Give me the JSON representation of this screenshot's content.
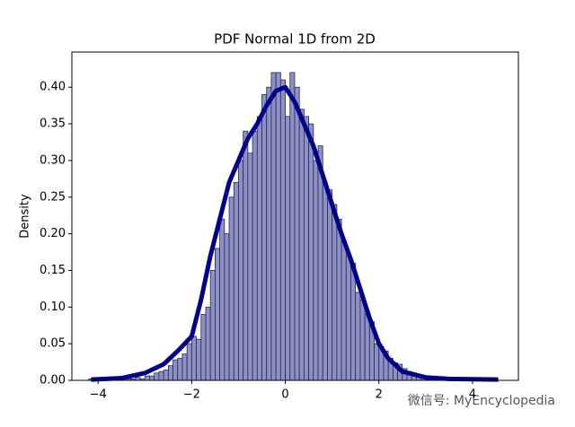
{
  "chart_data": {
    "type": "histogram",
    "title": "PDF Normal 1D from 2D",
    "ylabel": "Density",
    "bins": [
      -4.2,
      -4.1,
      -4.0,
      -3.9,
      -3.8,
      -3.7,
      -3.6,
      -3.5,
      -3.4,
      -3.3,
      -3.2,
      -3.1,
      -3.0,
      -2.9,
      -2.8,
      -2.7,
      -2.6,
      -2.5,
      -2.4,
      -2.3,
      -2.2,
      -2.1,
      -2.0,
      -1.9,
      -1.8,
      -1.7,
      -1.6,
      -1.5,
      -1.4,
      -1.3,
      -1.2,
      -1.1,
      -1.0,
      -0.9,
      -0.8,
      -0.7,
      -0.6,
      -0.5,
      -0.4,
      -0.3,
      -0.2,
      -0.1,
      0.0,
      0.1,
      0.2,
      0.3,
      0.4,
      0.5,
      0.6,
      0.7,
      0.8,
      0.9,
      1.0,
      1.1,
      1.2,
      1.3,
      1.4,
      1.5,
      1.6,
      1.7,
      1.8,
      1.9,
      2.0,
      2.1,
      2.2,
      2.3,
      2.4,
      2.5,
      2.6,
      2.7,
      2.8,
      2.9,
      3.0,
      3.1,
      3.2,
      3.3,
      3.4,
      3.5,
      3.6,
      3.7,
      3.8,
      3.9,
      4.0,
      4.1,
      4.2,
      4.3,
      4.4,
      4.5,
      4.6
    ],
    "values": [
      0.002,
      0,
      0,
      0,
      0,
      0,
      0.002,
      0,
      0.002,
      0.002,
      0.004,
      0.002,
      0.006,
      0.006,
      0.01,
      0.012,
      0.014,
      0.02,
      0.028,
      0.03,
      0.036,
      0.05,
      0.06,
      0.056,
      0.09,
      0.1,
      0.15,
      0.18,
      0.22,
      0.2,
      0.25,
      0.27,
      0.3,
      0.34,
      0.31,
      0.34,
      0.36,
      0.39,
      0.4,
      0.42,
      0.42,
      0.41,
      0.36,
      0.42,
      0.4,
      0.37,
      0.36,
      0.35,
      0.3,
      0.32,
      0.27,
      0.26,
      0.24,
      0.22,
      0.19,
      0.17,
      0.16,
      0.12,
      0.11,
      0.09,
      0.08,
      0.05,
      0.046,
      0.04,
      0.03,
      0.024,
      0.022,
      0.016,
      0.012,
      0.01,
      0.006,
      0.004,
      0.004,
      0.002,
      0.002,
      0,
      0.002,
      0,
      0,
      0,
      0,
      0,
      0,
      0,
      0,
      0,
      0,
      0
    ],
    "color": "#8c90c4",
    "edgecolor": "#2a2a55",
    "kde": {
      "color": "#00008b",
      "x": [
        -4.15,
        -3.5,
        -3,
        -2.6,
        -2.3,
        -2,
        -1.8,
        -1.6,
        -1.4,
        -1.2,
        -1,
        -0.8,
        -0.6,
        -0.4,
        -0.2,
        0,
        0.2,
        0.4,
        0.6,
        0.8,
        1,
        1.2,
        1.4,
        1.6,
        1.8,
        2,
        2.2,
        2.5,
        3,
        3.5,
        4.55
      ],
      "values": [
        0.001,
        0.003,
        0.01,
        0.022,
        0.04,
        0.06,
        0.11,
        0.17,
        0.22,
        0.27,
        0.3,
        0.33,
        0.35,
        0.375,
        0.395,
        0.4,
        0.38,
        0.35,
        0.32,
        0.28,
        0.24,
        0.2,
        0.165,
        0.125,
        0.085,
        0.05,
        0.03,
        0.012,
        0.004,
        0.002,
        0.001
      ]
    },
    "xlim": [
      -4.56,
      4.98
    ],
    "ylim": [
      0,
      0.448
    ],
    "xticks": [
      {
        "value": -4,
        "label": "−4"
      },
      {
        "value": -2,
        "label": "−2"
      },
      0,
      2,
      4
    ],
    "yticks": [
      {
        "value": 0,
        "label": "0.00"
      },
      {
        "value": 0.05,
        "label": "0.05"
      },
      {
        "value": 0.1,
        "label": "0.10"
      },
      {
        "value": 0.15,
        "label": "0.15"
      },
      {
        "value": 0.2,
        "label": "0.20"
      },
      {
        "value": 0.25,
        "label": "0.25"
      },
      {
        "value": 0.3,
        "label": "0.30"
      },
      {
        "value": 0.35,
        "label": "0.35"
      },
      {
        "value": 0.4,
        "label": "0.40"
      }
    ],
    "annotation": "微信号: MyEncyclopedia"
  }
}
